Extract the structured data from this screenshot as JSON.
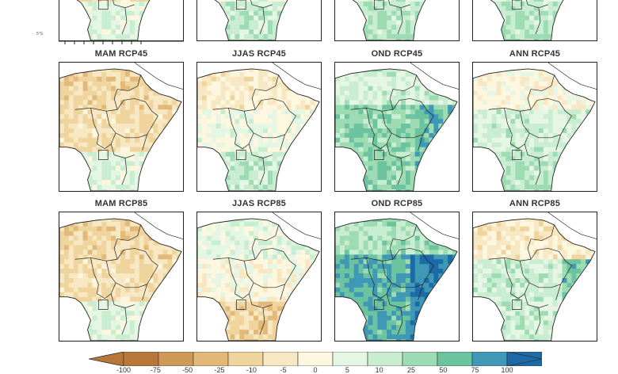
{
  "top_row_axis_label": "5°S",
  "rows": [
    {
      "panels": [
        {
          "title": "",
          "palette": "dry"
        },
        {
          "title": "",
          "palette": "mix"
        },
        {
          "title": "",
          "palette": "mixwet"
        },
        {
          "title": "",
          "palette": "mixwet"
        }
      ]
    },
    {
      "panels": [
        {
          "title": "MAM RCP45",
          "palette": "dry"
        },
        {
          "title": "JJAS RCP45",
          "palette": "mix"
        },
        {
          "title": "OND RCP45",
          "palette": "wet"
        },
        {
          "title": "ANN RCP45",
          "palette": "mixwet"
        }
      ]
    },
    {
      "panels": [
        {
          "title": "MAM RCP85",
          "palette": "dry"
        },
        {
          "title": "JJAS RCP85",
          "palette": "drysouth"
        },
        {
          "title": "OND RCP85",
          "palette": "verywet"
        },
        {
          "title": "ANN RCP85",
          "palette": "mixwet2"
        }
      ]
    }
  ],
  "colorbar": {
    "labels": [
      "-100",
      "-75",
      "-50",
      "-25",
      "-10",
      "-5",
      "0",
      "5",
      "10",
      "25",
      "50",
      "75",
      "100"
    ],
    "colors": [
      "#b8763a",
      "#cf9a58",
      "#e2b978",
      "#efd49d",
      "#f7e8c3",
      "#fdf7df",
      "#e6f6e4",
      "#c9edd0",
      "#9ddcb3",
      "#6cc39f",
      "#3f98b5",
      "#1c6aa6"
    ]
  }
}
